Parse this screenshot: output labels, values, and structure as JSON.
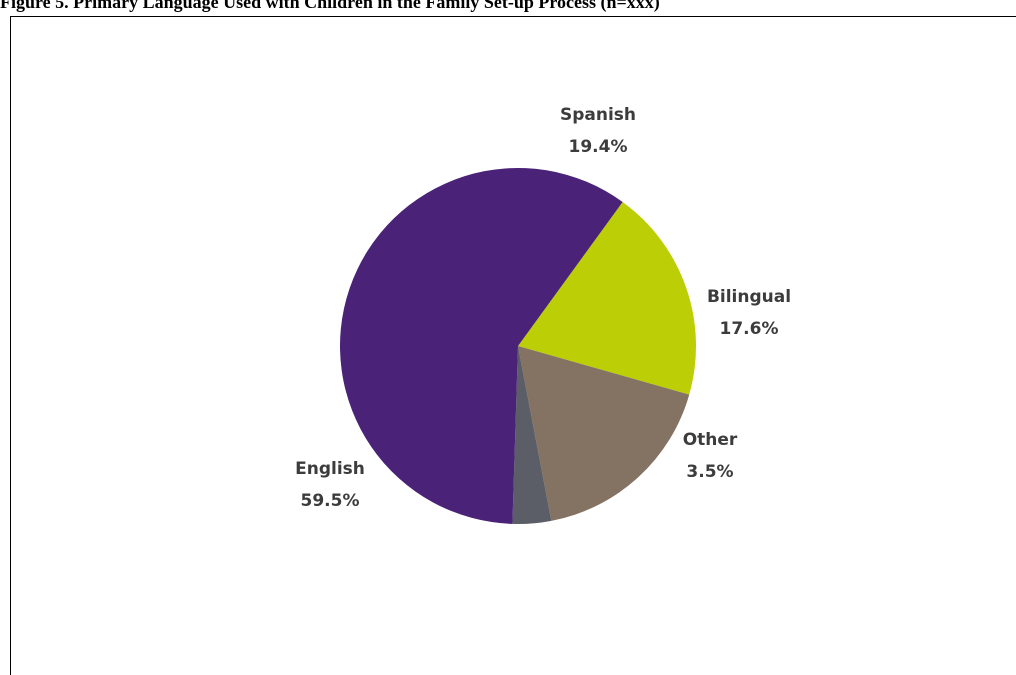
{
  "chart_data": {
    "type": "pie",
    "title": "Figure 5. Primary Language Used with Children in the Family Set-up Process (n=xxx)",
    "slices": [
      {
        "label": "English",
        "value": 59.5,
        "display": "59.5%",
        "color": "#4a2277"
      },
      {
        "label": "Spanish",
        "value": 19.4,
        "display": "19.4%",
        "color": "#bccf06"
      },
      {
        "label": "Bilingual",
        "value": 17.6,
        "display": "17.6%",
        "color": "#847262"
      },
      {
        "label": "Other",
        "value": 3.5,
        "display": "3.5%",
        "color": "#5b5e67"
      }
    ],
    "legend": "none",
    "labels": "outside"
  }
}
